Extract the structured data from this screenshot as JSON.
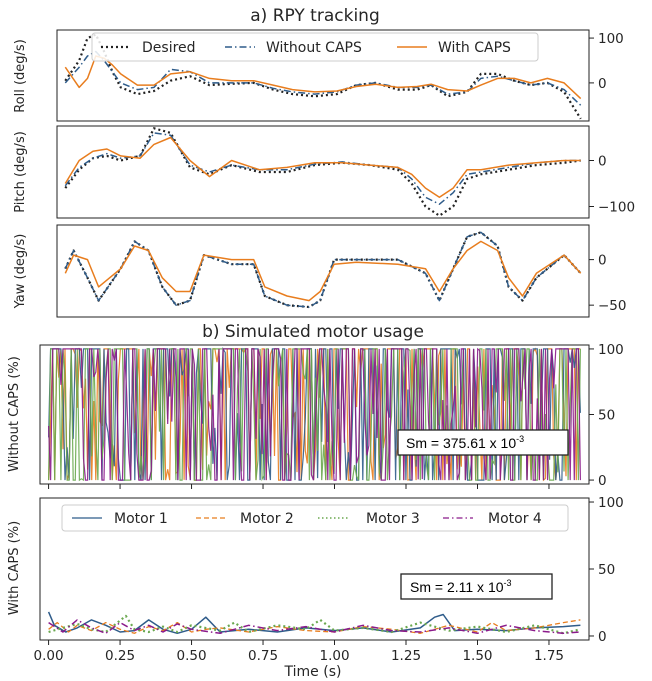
{
  "chart_data": [
    {
      "type": "line",
      "title": "a) RPY tracking",
      "ylabel": "Roll (deg/s)",
      "yticks": [
        0,
        100
      ],
      "ylim": [
        -85,
        118
      ],
      "xlim": [
        -0.03,
        1.89
      ],
      "legend": {
        "position": "top",
        "entries": [
          "Desired",
          "Without CAPS",
          "With CAPS"
        ]
      },
      "series": [
        {
          "name": "Desired",
          "color": "#222222",
          "style": "dotted",
          "x": [
            0.0,
            0.05,
            0.08,
            0.11,
            0.14,
            0.17,
            0.2,
            0.26,
            0.32,
            0.38,
            0.45,
            0.52,
            0.6,
            0.68,
            0.75,
            0.82,
            0.9,
            0.98,
            1.05,
            1.12,
            1.2,
            1.27,
            1.32,
            1.38,
            1.45,
            1.5,
            1.56,
            1.62,
            1.68,
            1.74,
            1.8,
            1.86
          ],
          "y": [
            5,
            50,
            100,
            108,
            70,
            25,
            -10,
            -25,
            -18,
            5,
            15,
            -5,
            -2,
            0,
            -15,
            -25,
            -30,
            -25,
            -5,
            0,
            -15,
            -15,
            -5,
            -30,
            -20,
            20,
            20,
            5,
            -5,
            0,
            -20,
            -80
          ]
        },
        {
          "name": "Without CAPS",
          "color": "#2f5c8a",
          "style": "dashdot",
          "x": [
            0.0,
            0.05,
            0.08,
            0.11,
            0.14,
            0.17,
            0.2,
            0.26,
            0.32,
            0.38,
            0.45,
            0.52,
            0.6,
            0.68,
            0.75,
            0.82,
            0.9,
            0.98,
            1.05,
            1.12,
            1.2,
            1.27,
            1.32,
            1.38,
            1.45,
            1.5,
            1.56,
            1.62,
            1.68,
            1.74,
            1.8,
            1.86
          ],
          "y": [
            0,
            35,
            60,
            70,
            50,
            25,
            0,
            -15,
            -10,
            30,
            25,
            0,
            0,
            0,
            -12,
            -20,
            -25,
            -20,
            -5,
            0,
            -10,
            -10,
            -5,
            -25,
            -20,
            10,
            15,
            5,
            -5,
            0,
            -15,
            -50
          ]
        },
        {
          "name": "With CAPS",
          "color": "#e87d1e",
          "style": "solid",
          "x": [
            0.0,
            0.05,
            0.08,
            0.11,
            0.14,
            0.17,
            0.2,
            0.26,
            0.32,
            0.38,
            0.45,
            0.52,
            0.6,
            0.68,
            0.75,
            0.82,
            0.9,
            0.98,
            1.05,
            1.12,
            1.2,
            1.27,
            1.32,
            1.38,
            1.45,
            1.5,
            1.56,
            1.62,
            1.68,
            1.74,
            1.8,
            1.86
          ],
          "y": [
            35,
            -10,
            10,
            60,
            55,
            40,
            20,
            -5,
            -5,
            20,
            25,
            10,
            5,
            5,
            -5,
            -15,
            -20,
            -18,
            -8,
            -3,
            -10,
            -8,
            -3,
            -15,
            -18,
            -5,
            10,
            10,
            0,
            10,
            0,
            -35
          ]
        }
      ]
    },
    {
      "type": "line",
      "ylabel": "Pitch (deg/s)",
      "yticks": [
        0,
        -100
      ],
      "ylim": [
        -125,
        75
      ],
      "xlim": [
        -0.03,
        1.89
      ],
      "series": [
        {
          "name": "Desired",
          "color": "#222222",
          "style": "dotted",
          "x": [
            0.0,
            0.05,
            0.1,
            0.15,
            0.2,
            0.27,
            0.32,
            0.38,
            0.45,
            0.52,
            0.6,
            0.7,
            0.8,
            0.9,
            1.0,
            1.1,
            1.2,
            1.25,
            1.3,
            1.35,
            1.4,
            1.45,
            1.5,
            1.6,
            1.7,
            1.8,
            1.86
          ],
          "y": [
            -60,
            -20,
            5,
            10,
            0,
            10,
            70,
            60,
            -15,
            -30,
            -10,
            -25,
            -25,
            -10,
            -5,
            -10,
            -20,
            -50,
            -100,
            -120,
            -100,
            -40,
            -30,
            -20,
            -10,
            -5,
            0
          ]
        },
        {
          "name": "Without CAPS",
          "color": "#2f5c8a",
          "style": "dashdot",
          "x": [
            0.0,
            0.05,
            0.1,
            0.15,
            0.2,
            0.27,
            0.32,
            0.38,
            0.45,
            0.52,
            0.6,
            0.7,
            0.8,
            0.9,
            1.0,
            1.1,
            1.2,
            1.25,
            1.3,
            1.35,
            1.4,
            1.45,
            1.5,
            1.6,
            1.7,
            1.8,
            1.86
          ],
          "y": [
            -55,
            -15,
            5,
            15,
            5,
            10,
            60,
            55,
            -10,
            -25,
            -10,
            -20,
            -20,
            -8,
            -3,
            -10,
            -15,
            -40,
            -80,
            -95,
            -70,
            -30,
            -25,
            -15,
            -5,
            0,
            0
          ]
        },
        {
          "name": "With CAPS",
          "color": "#e87d1e",
          "style": "solid",
          "x": [
            0.0,
            0.05,
            0.1,
            0.15,
            0.2,
            0.27,
            0.32,
            0.38,
            0.45,
            0.52,
            0.6,
            0.7,
            0.8,
            0.9,
            1.0,
            1.1,
            1.2,
            1.25,
            1.3,
            1.35,
            1.4,
            1.45,
            1.5,
            1.6,
            1.7,
            1.8,
            1.86
          ],
          "y": [
            -50,
            0,
            20,
            25,
            10,
            5,
            35,
            50,
            0,
            -35,
            0,
            -20,
            -15,
            -5,
            -5,
            -10,
            -15,
            -30,
            -60,
            -80,
            -60,
            -20,
            -20,
            -10,
            -5,
            0,
            0
          ]
        }
      ]
    },
    {
      "type": "line",
      "ylabel": "Yaw (deg/s)",
      "yticks": [
        0,
        -50
      ],
      "ylim": [
        -63,
        38
      ],
      "xlim": [
        -0.03,
        1.89
      ],
      "series": [
        {
          "name": "Desired",
          "color": "#222222",
          "style": "dotted",
          "x": [
            0.0,
            0.03,
            0.08,
            0.12,
            0.2,
            0.25,
            0.3,
            0.35,
            0.4,
            0.45,
            0.5,
            0.6,
            0.68,
            0.72,
            0.8,
            0.88,
            0.92,
            0.97,
            1.05,
            1.2,
            1.3,
            1.35,
            1.4,
            1.45,
            1.5,
            1.56,
            1.6,
            1.65,
            1.7,
            1.8,
            1.86
          ],
          "y": [
            -10,
            10,
            -20,
            -45,
            -10,
            20,
            10,
            -30,
            -50,
            -45,
            5,
            -5,
            -5,
            -40,
            -50,
            -52,
            -45,
            0,
            0,
            0,
            -15,
            -45,
            -10,
            25,
            30,
            15,
            -30,
            -45,
            -20,
            5,
            -15
          ]
        },
        {
          "name": "Without CAPS",
          "color": "#2f5c8a",
          "style": "dashdot",
          "x": [
            0.0,
            0.03,
            0.08,
            0.12,
            0.2,
            0.25,
            0.3,
            0.35,
            0.4,
            0.45,
            0.5,
            0.6,
            0.68,
            0.72,
            0.8,
            0.88,
            0.92,
            0.97,
            1.05,
            1.2,
            1.3,
            1.35,
            1.4,
            1.45,
            1.5,
            1.56,
            1.6,
            1.65,
            1.7,
            1.8,
            1.86
          ],
          "y": [
            -10,
            10,
            -20,
            -45,
            -10,
            20,
            10,
            -30,
            -50,
            -45,
            5,
            -5,
            -5,
            -40,
            -50,
            -52,
            -45,
            0,
            0,
            0,
            -15,
            -45,
            -10,
            25,
            30,
            15,
            -30,
            -45,
            -20,
            5,
            -15
          ]
        },
        {
          "name": "With CAPS",
          "color": "#e87d1e",
          "style": "solid",
          "x": [
            0.0,
            0.03,
            0.08,
            0.12,
            0.2,
            0.25,
            0.3,
            0.35,
            0.4,
            0.45,
            0.5,
            0.6,
            0.68,
            0.72,
            0.8,
            0.88,
            0.92,
            0.97,
            1.05,
            1.2,
            1.3,
            1.35,
            1.4,
            1.45,
            1.5,
            1.56,
            1.6,
            1.65,
            1.7,
            1.8,
            1.86
          ],
          "y": [
            -15,
            5,
            0,
            -30,
            -10,
            15,
            10,
            -20,
            -35,
            -35,
            5,
            0,
            0,
            -30,
            -40,
            -45,
            -35,
            -5,
            -3,
            -5,
            -10,
            -35,
            -10,
            10,
            20,
            10,
            -20,
            -40,
            -15,
            5,
            -15
          ]
        }
      ]
    },
    {
      "type": "line",
      "title": "b) Simulated motor usage",
      "ylabel": "Without CAPS (%)",
      "yticks": [
        0,
        50,
        100
      ],
      "ylim": [
        -3,
        103
      ],
      "xlim": [
        -0.03,
        1.89
      ],
      "annotation": "Sm = 375.61 x 10",
      "annotation_exp": "-3",
      "series": [
        {
          "name": "Motor 1",
          "color": "#2f5c8a",
          "note": "rapid switching between 0 and 100 over 0-1.86 s"
        },
        {
          "name": "Motor 2",
          "color": "#e87d1e",
          "note": "rapid switching between 0 and 100 over 0-1.86 s"
        },
        {
          "name": "Motor 3",
          "color": "#6aa84f",
          "note": "rapid switching between 0 and 100 over 0-1.86 s"
        },
        {
          "name": "Motor 4",
          "color": "#8b1a8b",
          "note": "rapid switching between 0 and 100 over 0-1.86 s"
        }
      ]
    },
    {
      "type": "line",
      "ylabel": "With CAPS (%)",
      "xlabel": "Time (s)",
      "xticks": [
        "0.00",
        "0.25",
        "0.50",
        "0.75",
        "1.00",
        "1.25",
        "1.50",
        "1.75"
      ],
      "yticks": [
        0,
        50,
        100
      ],
      "ylim": [
        -3,
        103
      ],
      "xlim": [
        -0.03,
        1.89
      ],
      "annotation": "Sm = 2.11 x 10",
      "annotation_exp": "-3",
      "legend": {
        "position": "top",
        "entries": [
          "Motor 1",
          "Motor 2",
          "Motor 3",
          "Motor 4"
        ]
      },
      "series": [
        {
          "name": "Motor 1",
          "color": "#2f5c8a",
          "style": "solid",
          "x": [
            0.0,
            0.02,
            0.06,
            0.1,
            0.15,
            0.2,
            0.25,
            0.3,
            0.35,
            0.4,
            0.45,
            0.5,
            0.55,
            0.6,
            0.7,
            0.8,
            0.9,
            1.0,
            1.1,
            1.2,
            1.3,
            1.35,
            1.38,
            1.42,
            1.5,
            1.6,
            1.7,
            1.8,
            1.86
          ],
          "y": [
            18,
            8,
            3,
            6,
            12,
            8,
            3,
            4,
            12,
            5,
            2,
            5,
            14,
            3,
            5,
            3,
            6,
            4,
            6,
            3,
            6,
            14,
            16,
            4,
            5,
            4,
            6,
            7,
            8
          ]
        },
        {
          "name": "Motor 2",
          "color": "#e87d1e",
          "style": "dashed",
          "x": [
            0.0,
            0.03,
            0.07,
            0.1,
            0.15,
            0.2,
            0.25,
            0.3,
            0.35,
            0.4,
            0.45,
            0.5,
            0.55,
            0.6,
            0.7,
            0.8,
            0.9,
            1.0,
            1.1,
            1.2,
            1.3,
            1.4,
            1.5,
            1.55,
            1.6,
            1.7,
            1.8,
            1.86
          ],
          "y": [
            5,
            10,
            3,
            8,
            4,
            10,
            5,
            2,
            7,
            4,
            10,
            3,
            5,
            6,
            3,
            7,
            4,
            3,
            7,
            5,
            2,
            8,
            3,
            10,
            4,
            6,
            10,
            12
          ]
        },
        {
          "name": "Motor 3",
          "color": "#6aa84f",
          "style": "dotted",
          "x": [
            0.0,
            0.05,
            0.1,
            0.15,
            0.2,
            0.27,
            0.3,
            0.35,
            0.4,
            0.45,
            0.5,
            0.6,
            0.65,
            0.7,
            0.8,
            0.9,
            0.95,
            1.0,
            1.1,
            1.2,
            1.3,
            1.4,
            1.5,
            1.6,
            1.7,
            1.8,
            1.86
          ],
          "y": [
            3,
            6,
            9,
            5,
            3,
            15,
            5,
            3,
            7,
            3,
            8,
            4,
            10,
            3,
            8,
            5,
            12,
            4,
            6,
            3,
            10,
            4,
            7,
            3,
            8,
            2,
            5
          ]
        },
        {
          "name": "Motor 4",
          "color": "#8b1a8b",
          "style": "dashdot",
          "x": [
            0.0,
            0.05,
            0.1,
            0.15,
            0.2,
            0.25,
            0.3,
            0.35,
            0.4,
            0.45,
            0.5,
            0.6,
            0.7,
            0.8,
            0.9,
            1.0,
            1.1,
            1.2,
            1.3,
            1.4,
            1.5,
            1.6,
            1.7,
            1.8,
            1.86
          ],
          "y": [
            10,
            3,
            12,
            6,
            2,
            10,
            4,
            8,
            3,
            9,
            5,
            2,
            8,
            4,
            7,
            3,
            8,
            4,
            3,
            6,
            2,
            8,
            4,
            2,
            3
          ]
        }
      ]
    }
  ]
}
